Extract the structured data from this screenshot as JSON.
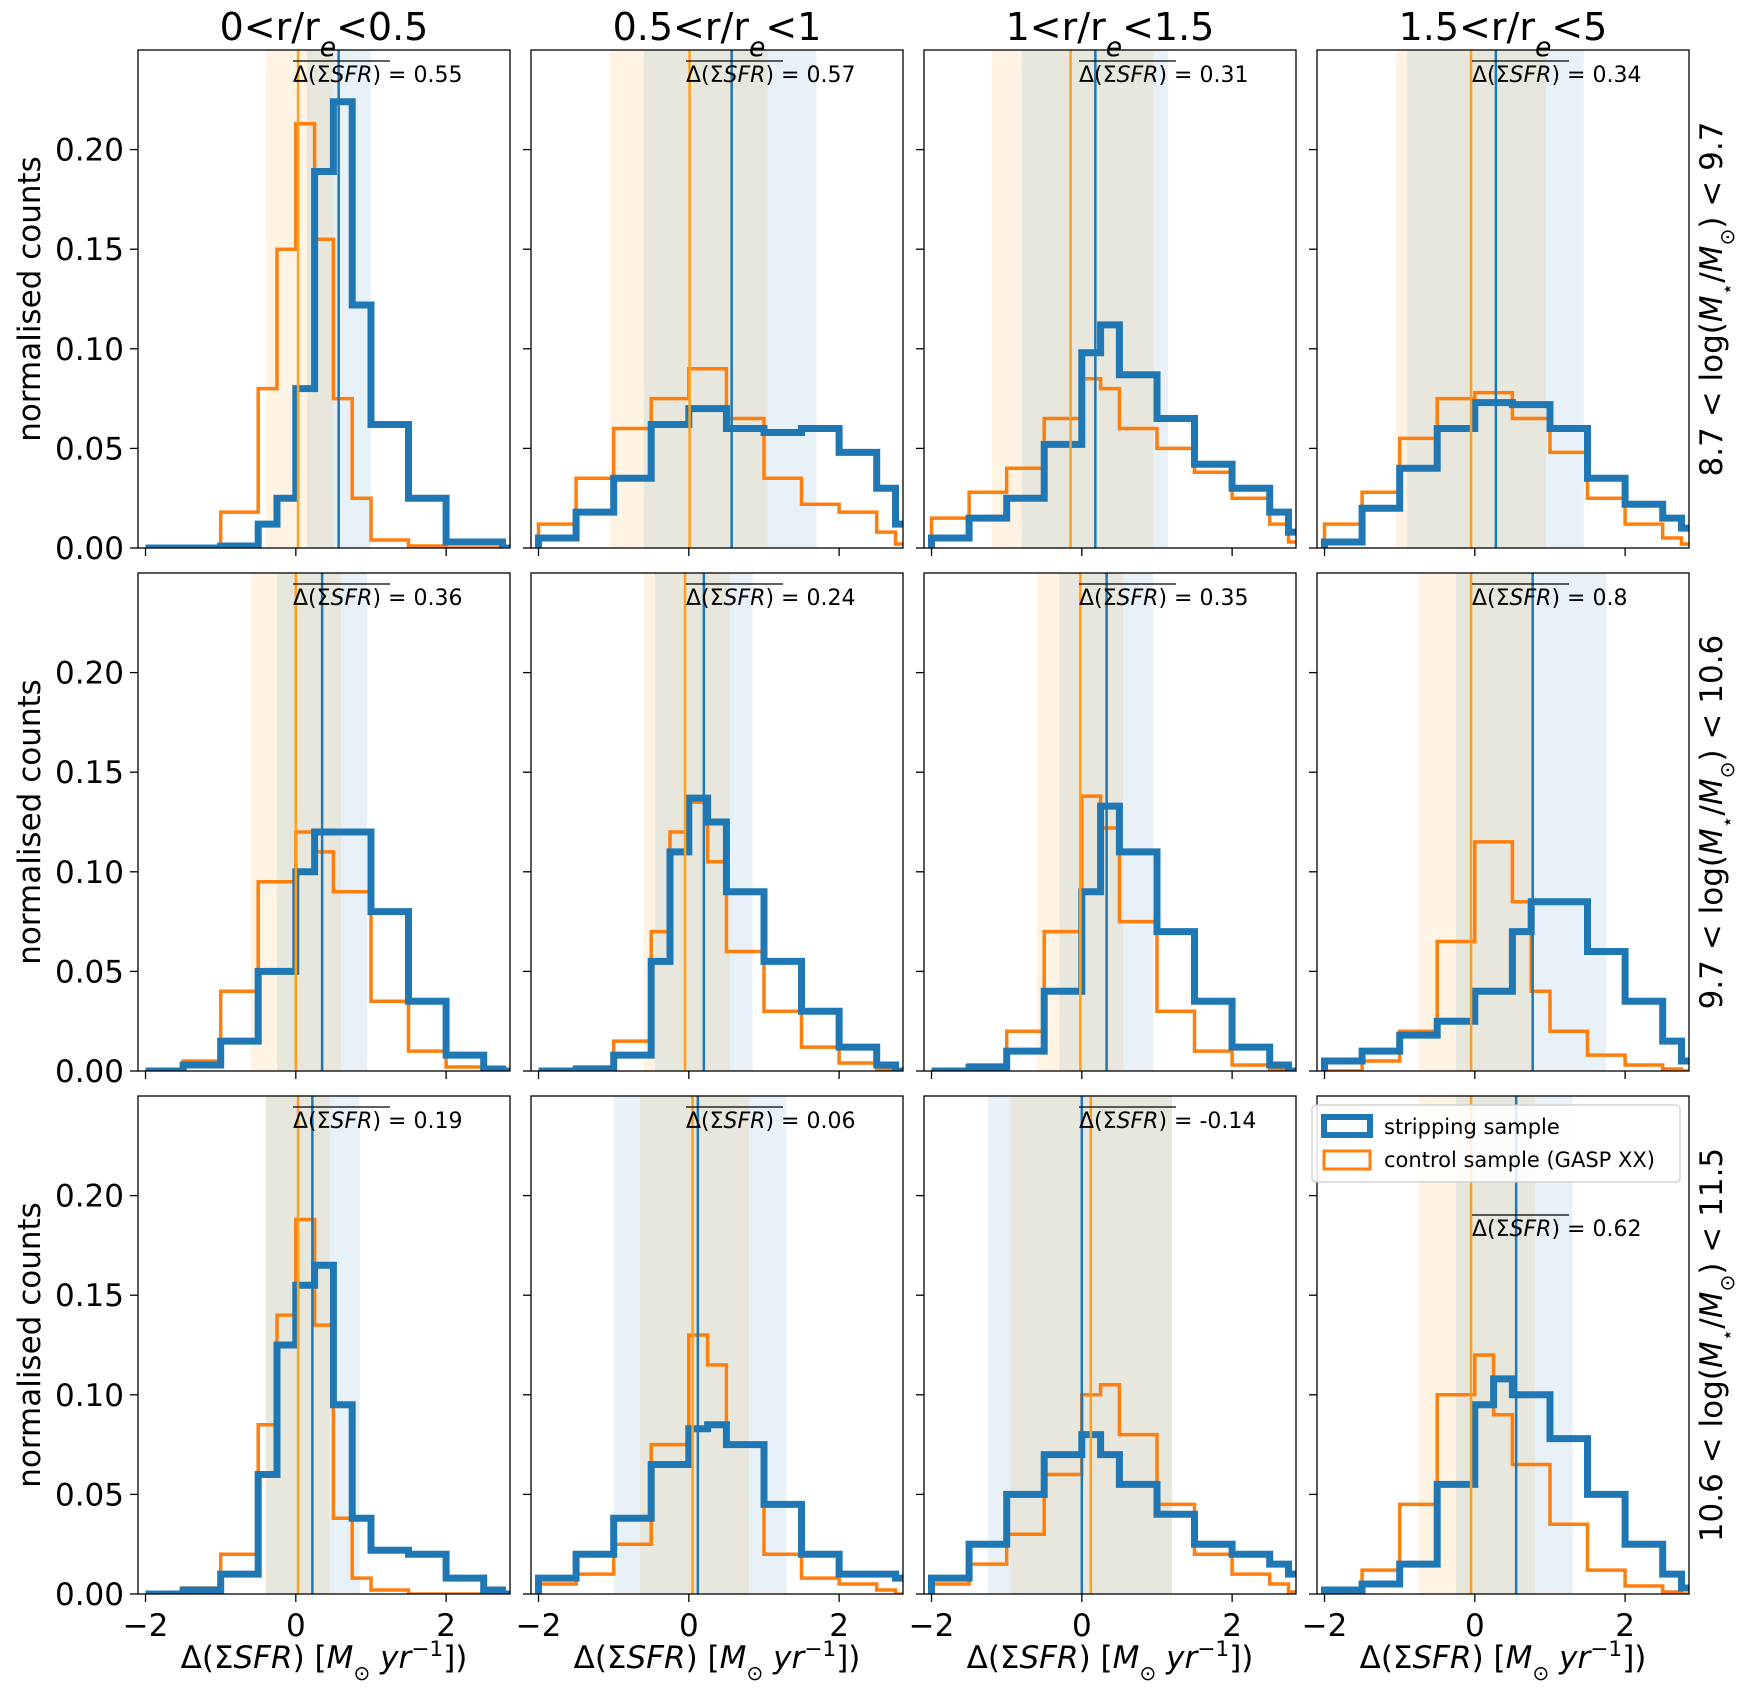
{
  "chart_data": {
    "type": "histogram-grid",
    "columns": [
      "0<r/r_e<0.5",
      "0.5<r/r_e<1",
      "1<r/r_e<1.5",
      "1.5<r/r_e<5"
    ],
    "rows": [
      "8.7 < log(M_⋆/M_⊙) < 9.7",
      "9.7 < log(M_⋆/M_⊙) < 10.6",
      "10.6 < log(M_⋆/M_⊙) < 11.5"
    ],
    "xlabel": "Δ(ΣSFR) [M_⊙ yr⁻¹])",
    "ylabel": "normalised counts",
    "xlim": [
      -2.1,
      2.85
    ],
    "ylim": [
      0,
      0.25
    ],
    "xticks": [
      -2,
      0,
      2
    ],
    "xtick_labels": [
      "−2",
      "0",
      "2"
    ],
    "yticks": [
      0,
      0.05,
      0.1,
      0.15,
      0.2
    ],
    "ytick_labels": [
      "0.00",
      "0.05",
      "0.10",
      "0.15",
      "0.20"
    ],
    "annotation_label": "Δ(ΣSFR) =",
    "colors": {
      "stripping": "#1f77b4",
      "control": "#ff7f0e",
      "control_median": "#ff9f1a"
    },
    "legend": {
      "position": "upper-left of bottom-right panel",
      "stripping": "stripping sample",
      "control": "control sample (GASP XX)"
    },
    "panels": [
      {
        "row": 0,
        "col": 0,
        "annotation": "0.55",
        "strip_median": 0.57,
        "ctrl_median": 0.03,
        "strip_band": [
          0.15,
          1.0
        ],
        "ctrl_band": [
          -0.4,
          0.5
        ],
        "strip": {
          "x": [
            -2,
            -1,
            -0.5,
            -0.25,
            0,
            0.25,
            0.5,
            0.75,
            1,
            1.5,
            2,
            2.75
          ],
          "y": [
            0,
            0.001,
            0.012,
            0.025,
            0.08,
            0.189,
            0.224,
            0.122,
            0.062,
            0.025,
            0.003,
            0
          ]
        },
        "ctrl": {
          "x": [
            -2,
            -1,
            -0.5,
            -0.25,
            0,
            0.25,
            0.5,
            0.75,
            1,
            1.5,
            2,
            2.75
          ],
          "y": [
            0,
            0.018,
            0.08,
            0.15,
            0.213,
            0.155,
            0.075,
            0.025,
            0.004,
            0.001,
            0,
            0
          ]
        }
      },
      {
        "row": 0,
        "col": 1,
        "annotation": "0.57",
        "strip_median": 0.57,
        "ctrl_median": 0.01,
        "strip_band": [
          -0.6,
          1.7
        ],
        "ctrl_band": [
          -1.05,
          1.05
        ],
        "strip": {
          "x": [
            -2,
            -1.5,
            -1,
            -0.5,
            0,
            0.5,
            1,
            1.5,
            2,
            2.5,
            2.75
          ],
          "y": [
            0.005,
            0.018,
            0.035,
            0.062,
            0.07,
            0.06,
            0.058,
            0.06,
            0.048,
            0.03,
            0.012
          ]
        },
        "ctrl": {
          "x": [
            -2,
            -1.5,
            -1,
            -0.5,
            0,
            0.5,
            1,
            1.5,
            2,
            2.5,
            2.75
          ],
          "y": [
            0.012,
            0.035,
            0.06,
            0.075,
            0.09,
            0.065,
            0.035,
            0.022,
            0.018,
            0.008,
            0.002
          ]
        }
      },
      {
        "row": 0,
        "col": 2,
        "annotation": "0.31",
        "strip_median": 0.18,
        "ctrl_median": -0.15,
        "strip_band": [
          -0.8,
          1.15
        ],
        "ctrl_band": [
          -1.2,
          0.95
        ],
        "strip": {
          "x": [
            -2,
            -1.5,
            -1,
            -0.5,
            0,
            0.25,
            0.5,
            1,
            1.5,
            2,
            2.5,
            2.75
          ],
          "y": [
            0.005,
            0.015,
            0.025,
            0.052,
            0.098,
            0.112,
            0.087,
            0.065,
            0.042,
            0.03,
            0.018,
            0.008
          ]
        },
        "ctrl": {
          "x": [
            -2,
            -1.5,
            -1,
            -0.5,
            0,
            0.25,
            0.5,
            1,
            1.5,
            2,
            2.5,
            2.75
          ],
          "y": [
            0.015,
            0.028,
            0.04,
            0.065,
            0.085,
            0.08,
            0.06,
            0.05,
            0.038,
            0.025,
            0.012,
            0.003
          ]
        }
      },
      {
        "row": 0,
        "col": 3,
        "annotation": "0.34",
        "strip_median": 0.28,
        "ctrl_median": -0.05,
        "strip_band": [
          -0.9,
          1.45
        ],
        "ctrl_band": [
          -1.05,
          0.95
        ],
        "strip": {
          "x": [
            -2,
            -1.5,
            -1,
            -0.5,
            0,
            0.5,
            1,
            1.5,
            2,
            2.5,
            2.75
          ],
          "y": [
            0.003,
            0.02,
            0.04,
            0.06,
            0.073,
            0.072,
            0.06,
            0.035,
            0.022,
            0.015,
            0.01
          ]
        },
        "ctrl": {
          "x": [
            -2,
            -1.5,
            -1,
            -0.5,
            0,
            0.5,
            1,
            1.5,
            2,
            2.5,
            2.75
          ],
          "y": [
            0.012,
            0.028,
            0.055,
            0.075,
            0.078,
            0.065,
            0.048,
            0.025,
            0.012,
            0.005,
            0.002
          ]
        }
      },
      {
        "row": 1,
        "col": 0,
        "annotation": "0.36",
        "strip_median": 0.35,
        "ctrl_median": 0.0,
        "strip_band": [
          -0.25,
          0.95
        ],
        "ctrl_band": [
          -0.6,
          0.6
        ],
        "strip": {
          "x": [
            -2,
            -1.5,
            -1,
            -0.5,
            0,
            0.25,
            0.5,
            1,
            1.5,
            2,
            2.5,
            2.75
          ],
          "y": [
            0,
            0.003,
            0.015,
            0.05,
            0.1,
            0.12,
            0.12,
            0.08,
            0.035,
            0.008,
            0.001,
            0
          ]
        },
        "ctrl": {
          "x": [
            -2,
            -1.5,
            -1,
            -0.5,
            0,
            0.25,
            0.5,
            1,
            1.5,
            2,
            2.5,
            2.75
          ],
          "y": [
            0,
            0.005,
            0.04,
            0.095,
            0.12,
            0.11,
            0.09,
            0.035,
            0.01,
            0.002,
            0,
            0
          ]
        }
      },
      {
        "row": 1,
        "col": 1,
        "annotation": "0.24",
        "strip_median": 0.2,
        "ctrl_median": -0.05,
        "strip_band": [
          -0.45,
          0.85
        ],
        "ctrl_band": [
          -0.6,
          0.55
        ],
        "strip": {
          "x": [
            -2,
            -1.5,
            -1,
            -0.5,
            -0.25,
            0,
            0.25,
            0.5,
            1,
            1.5,
            2,
            2.5,
            2.75
          ],
          "y": [
            0,
            0.001,
            0.008,
            0.055,
            0.11,
            0.137,
            0.125,
            0.09,
            0.055,
            0.03,
            0.012,
            0.003,
            0
          ]
        },
        "ctrl": {
          "x": [
            -2,
            -1.5,
            -1,
            -0.5,
            -0.25,
            0,
            0.25,
            0.5,
            1,
            1.5,
            2,
            2.5,
            2.75
          ],
          "y": [
            0,
            0.002,
            0.015,
            0.07,
            0.12,
            0.135,
            0.105,
            0.06,
            0.03,
            0.012,
            0.004,
            0.001,
            0
          ]
        }
      },
      {
        "row": 1,
        "col": 2,
        "annotation": "0.35",
        "strip_median": 0.33,
        "ctrl_median": -0.02,
        "strip_band": [
          -0.3,
          0.95
        ],
        "ctrl_band": [
          -0.6,
          0.55
        ],
        "strip": {
          "x": [
            -2,
            -1.5,
            -1,
            -0.5,
            0,
            0.25,
            0.5,
            1,
            1.5,
            2,
            2.5,
            2.75
          ],
          "y": [
            0,
            0.002,
            0.01,
            0.04,
            0.09,
            0.133,
            0.11,
            0.07,
            0.035,
            0.012,
            0.003,
            0
          ]
        },
        "ctrl": {
          "x": [
            -2,
            -1.5,
            -1,
            -0.5,
            0,
            0.25,
            0.5,
            1,
            1.5,
            2,
            2.5,
            2.75
          ],
          "y": [
            0,
            0.003,
            0.02,
            0.07,
            0.138,
            0.122,
            0.075,
            0.03,
            0.01,
            0.003,
            0.001,
            0
          ]
        }
      },
      {
        "row": 1,
        "col": 3,
        "annotation": "0.8",
        "strip_median": 0.77,
        "ctrl_median": -0.05,
        "strip_band": [
          -0.25,
          1.75
        ],
        "ctrl_band": [
          -0.75,
          0.75
        ],
        "strip": {
          "x": [
            -2,
            -1.5,
            -1,
            -0.5,
            0,
            0.5,
            0.75,
            1,
            1.5,
            2,
            2.5,
            2.75
          ],
          "y": [
            0.005,
            0.01,
            0.018,
            0.025,
            0.04,
            0.07,
            0.085,
            0.085,
            0.06,
            0.035,
            0.015,
            0.005
          ]
        },
        "ctrl": {
          "x": [
            -2,
            -1.5,
            -1,
            -0.5,
            0,
            0.5,
            0.75,
            1,
            1.5,
            2,
            2.5,
            2.75
          ],
          "y": [
            0,
            0.005,
            0.02,
            0.065,
            0.115,
            0.085,
            0.04,
            0.02,
            0.008,
            0.003,
            0.001,
            0
          ]
        }
      },
      {
        "row": 2,
        "col": 0,
        "annotation": "0.19",
        "strip_median": 0.22,
        "ctrl_median": 0.03,
        "strip_band": [
          -0.4,
          0.85
        ],
        "ctrl_band": [
          -0.4,
          0.45
        ],
        "strip": {
          "x": [
            -2,
            -1.5,
            -1,
            -0.5,
            -0.25,
            0,
            0.25,
            0.5,
            0.75,
            1,
            1.5,
            2,
            2.5,
            2.75
          ],
          "y": [
            0,
            0.002,
            0.01,
            0.06,
            0.125,
            0.155,
            0.165,
            0.095,
            0.038,
            0.022,
            0.02,
            0.008,
            0.002,
            0
          ]
        },
        "ctrl": {
          "x": [
            -2,
            -1.5,
            -1,
            -0.5,
            -0.25,
            0,
            0.25,
            0.5,
            0.75,
            1,
            1.5,
            2,
            2.5,
            2.75
          ],
          "y": [
            0,
            0.003,
            0.02,
            0.085,
            0.14,
            0.188,
            0.135,
            0.038,
            0.008,
            0.002,
            0,
            0,
            0,
            0
          ]
        }
      },
      {
        "row": 2,
        "col": 1,
        "annotation": "0.06",
        "strip_median": 0.12,
        "ctrl_median": 0.05,
        "strip_band": [
          -1.0,
          1.3
        ],
        "ctrl_band": [
          -0.65,
          0.8
        ],
        "strip": {
          "x": [
            -2,
            -1.5,
            -1,
            -0.5,
            0,
            0.25,
            0.5,
            1,
            1.5,
            2,
            2.5,
            2.75
          ],
          "y": [
            0.008,
            0.02,
            0.038,
            0.065,
            0.083,
            0.085,
            0.075,
            0.045,
            0.02,
            0.01,
            0.01,
            0.008
          ]
        },
        "ctrl": {
          "x": [
            -2,
            -1.5,
            -1,
            -0.5,
            0,
            0.25,
            0.5,
            1,
            1.5,
            2,
            2.5,
            2.75
          ],
          "y": [
            0.005,
            0.01,
            0.025,
            0.075,
            0.13,
            0.115,
            0.075,
            0.02,
            0.008,
            0.005,
            0.002,
            0
          ]
        }
      },
      {
        "row": 2,
        "col": 2,
        "annotation": "-0.14",
        "strip_median": 0.0,
        "ctrl_median": 0.12,
        "strip_band": [
          -1.25,
          1.2
        ],
        "ctrl_band": [
          -0.95,
          1.2
        ],
        "strip": {
          "x": [
            -2,
            -1.5,
            -1,
            -0.5,
            0,
            0.25,
            0.5,
            1,
            1.5,
            2,
            2.5,
            2.75
          ],
          "y": [
            0.008,
            0.025,
            0.05,
            0.07,
            0.08,
            0.07,
            0.055,
            0.04,
            0.025,
            0.02,
            0.015,
            0.01
          ]
        },
        "ctrl": {
          "x": [
            -2,
            -1.5,
            -1,
            -0.5,
            0,
            0.25,
            0.5,
            1,
            1.5,
            2,
            2.5,
            2.75
          ],
          "y": [
            0.005,
            0.015,
            0.03,
            0.06,
            0.1,
            0.105,
            0.08,
            0.045,
            0.02,
            0.01,
            0.005,
            0.001
          ]
        }
      },
      {
        "row": 2,
        "col": 3,
        "annotation": "0.62",
        "strip_median": 0.55,
        "ctrl_median": -0.05,
        "strip_band": [
          -0.25,
          1.3
        ],
        "ctrl_band": [
          -0.75,
          0.8
        ],
        "strip": {
          "x": [
            -2,
            -1.5,
            -1,
            -0.5,
            0,
            0.25,
            0.5,
            1,
            1.5,
            2,
            2.5,
            2.75
          ],
          "y": [
            0.002,
            0.005,
            0.015,
            0.055,
            0.095,
            0.108,
            0.1,
            0.078,
            0.05,
            0.025,
            0.01,
            0.003
          ]
        },
        "ctrl": {
          "x": [
            -2,
            -1.5,
            -1,
            -0.5,
            0,
            0.25,
            0.5,
            1,
            1.5,
            2,
            2.5,
            2.75
          ],
          "y": [
            0.002,
            0.012,
            0.045,
            0.1,
            0.12,
            0.09,
            0.065,
            0.035,
            0.012,
            0.004,
            0.001,
            0
          ]
        }
      }
    ]
  }
}
